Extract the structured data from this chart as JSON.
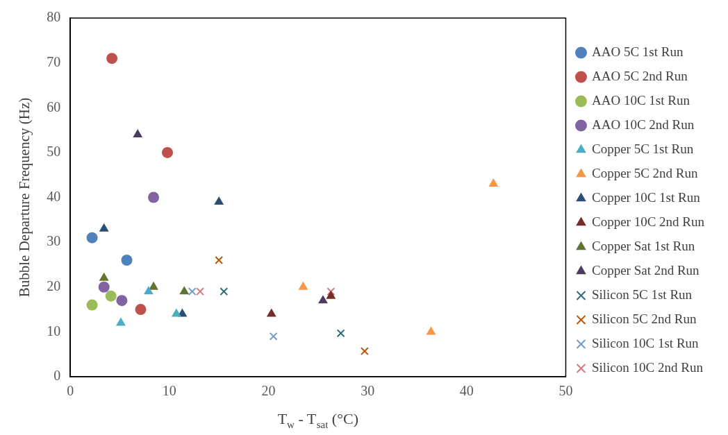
{
  "chart_data": {
    "type": "scatter",
    "xlabel": "T$_{w}$ - T$_{sat}$ (°C)",
    "ylabel": "Bubble Departure Frequency (Hz)",
    "xlim": [
      0,
      50
    ],
    "xticks": [
      0,
      10,
      20,
      30,
      40,
      50
    ],
    "ylim": [
      0,
      80
    ],
    "yticks": [
      0,
      10,
      20,
      30,
      40,
      50,
      60,
      70,
      80
    ],
    "grid": false,
    "legend": "right",
    "series": [
      {
        "name": "AAO 5C 1st Run",
        "color": "#4f81bd",
        "marker": "circle",
        "x": [
          2.2,
          5.7
        ],
        "values": [
          31,
          26
        ]
      },
      {
        "name": "AAO 5C 2nd Run",
        "color": "#c0504d",
        "marker": "circle",
        "x": [
          4.2,
          9.8,
          7.1
        ],
        "values": [
          71,
          50,
          15
        ]
      },
      {
        "name": "AAO 10C 1st Run",
        "color": "#9bbb59",
        "marker": "circle",
        "x": [
          2.2,
          4.1
        ],
        "values": [
          16,
          18
        ]
      },
      {
        "name": "AAO 10C 2nd Run",
        "color": "#8064a2",
        "marker": "circle",
        "x": [
          3.4,
          5.2,
          8.4
        ],
        "values": [
          20,
          17,
          40
        ]
      },
      {
        "name": "Copper 5C 1st Run",
        "color": "#4bacc6",
        "marker": "triangle",
        "x": [
          5.1,
          7.9,
          10.7
        ],
        "values": [
          12,
          19,
          14
        ]
      },
      {
        "name": "Copper 5C 2nd Run",
        "color": "#f79646",
        "marker": "triangle",
        "x": [
          23.5,
          36.4,
          42.7
        ],
        "values": [
          20,
          10,
          43
        ]
      },
      {
        "name": "Copper 10C 1st Run",
        "color": "#2c4d75",
        "marker": "triangle",
        "x": [
          3.4,
          11.3,
          15
        ],
        "values": [
          33,
          14,
          39
        ]
      },
      {
        "name": "Copper 10C 2nd Run",
        "color": "#772c2a",
        "marker": "triangle",
        "x": [
          20.3,
          26.3
        ],
        "values": [
          14,
          18
        ]
      },
      {
        "name": "Copper Sat 1st Run",
        "color": "#5f7530",
        "marker": "triangle",
        "x": [
          3.4,
          8.4,
          11.5
        ],
        "values": [
          22,
          20,
          19
        ]
      },
      {
        "name": "Copper Sat 2nd Run",
        "color": "#4d3b62",
        "marker": "triangle",
        "x": [
          6.8,
          25.5
        ],
        "values": [
          54,
          17
        ]
      },
      {
        "name": "Silicon 5C 1st Run",
        "color": "#276a7c",
        "marker": "cross",
        "x": [
          15.5,
          27.3
        ],
        "values": [
          19,
          9.7
        ]
      },
      {
        "name": "Silicon 5C 2nd Run",
        "color": "#b65708",
        "marker": "cross",
        "x": [
          15,
          29.7
        ],
        "values": [
          26,
          5.7
        ]
      },
      {
        "name": "Silicon 10C 1st Run",
        "color": "#729aca",
        "marker": "cross",
        "x": [
          12.3,
          20.5
        ],
        "values": [
          19,
          9
        ]
      },
      {
        "name": "Silicon 10C 2nd Run",
        "color": "#d4797a",
        "marker": "cross",
        "x": [
          13.1,
          26.3
        ],
        "values": [
          19,
          19
        ]
      }
    ]
  }
}
